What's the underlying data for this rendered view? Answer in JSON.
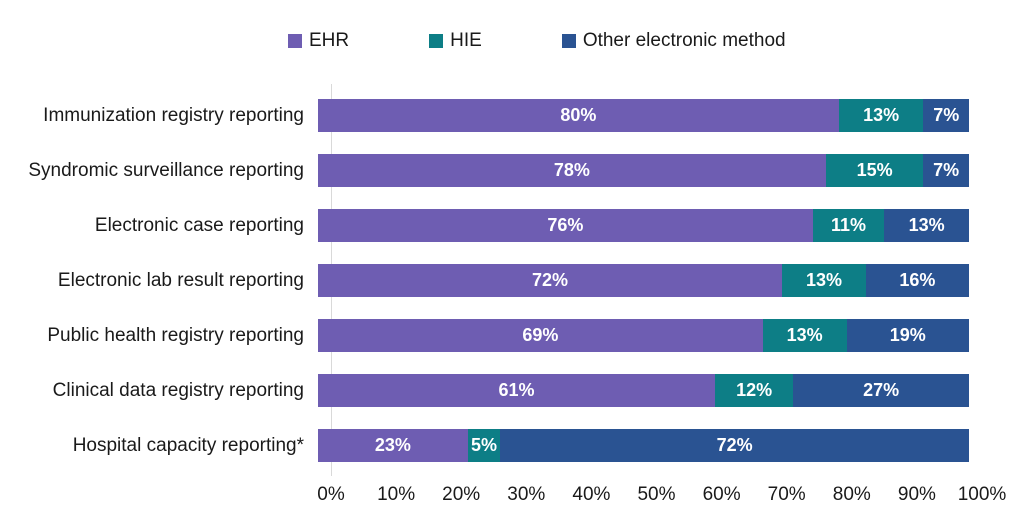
{
  "chart_data": {
    "type": "bar",
    "variant": "horizontal_stacked",
    "title": "",
    "categories": [
      "Immunization registry reporting",
      "Syndromic surveillance reporting",
      "Electronic case reporting",
      "Electronic lab result reporting",
      "Public health registry reporting",
      "Clinical data registry reporting",
      "Hospital capacity reporting*"
    ],
    "series": [
      {
        "name": "EHR",
        "color": "#6E5DB2",
        "values": [
          80,
          78,
          76,
          72,
          69,
          61,
          23
        ]
      },
      {
        "name": "HIE",
        "color": "#0D7E86",
        "values": [
          13,
          15,
          11,
          13,
          13,
          12,
          5
        ]
      },
      {
        "name": "Other electronic method",
        "color": "#2A5392",
        "values": [
          7,
          7,
          13,
          16,
          19,
          27,
          72
        ]
      }
    ],
    "value_suffix": "%",
    "x_ticks": [
      "0%",
      "10%",
      "20%",
      "30%",
      "40%",
      "50%",
      "60%",
      "70%",
      "80%",
      "90%",
      "100%"
    ],
    "xlim": [
      0,
      100
    ],
    "legend_position": "top",
    "grid": false,
    "colors": {
      "axis_line": "#d9d9d9",
      "category_text": "#1a1a1a",
      "value_text": "#ffffff"
    }
  }
}
